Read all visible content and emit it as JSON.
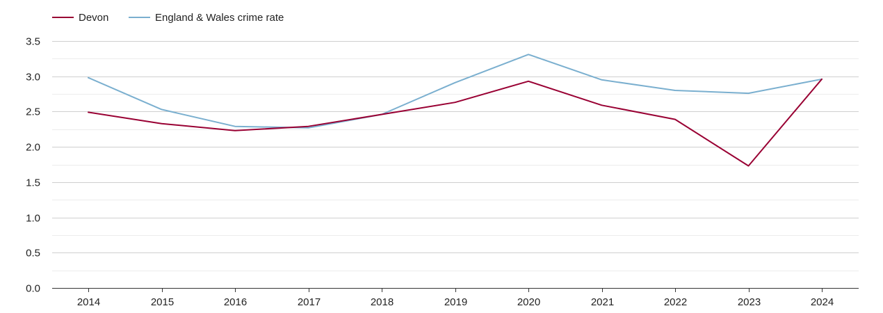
{
  "chart_data": {
    "type": "line",
    "title": "",
    "xlabel": "",
    "ylabel": "",
    "categories": [
      "2014",
      "2015",
      "2016",
      "2017",
      "2018",
      "2019",
      "2020",
      "2021",
      "2022",
      "2023",
      "2024"
    ],
    "ylim": [
      0,
      3.5
    ],
    "yticks": [
      "0.0",
      "0.5",
      "1.0",
      "1.5",
      "2.0",
      "2.5",
      "3.0",
      "3.5"
    ],
    "grid": true,
    "legend_position": "top-left",
    "series": [
      {
        "name": "Devon",
        "color": "#990033",
        "values": [
          2.49,
          2.33,
          2.23,
          2.29,
          2.46,
          2.63,
          2.93,
          2.59,
          2.39,
          1.73,
          2.96
        ]
      },
      {
        "name": "England & Wales crime rate",
        "color": "#7aafcf",
        "values": [
          2.98,
          2.53,
          2.29,
          2.27,
          2.46,
          2.91,
          3.31,
          2.95,
          2.8,
          2.76,
          2.96
        ]
      }
    ]
  }
}
